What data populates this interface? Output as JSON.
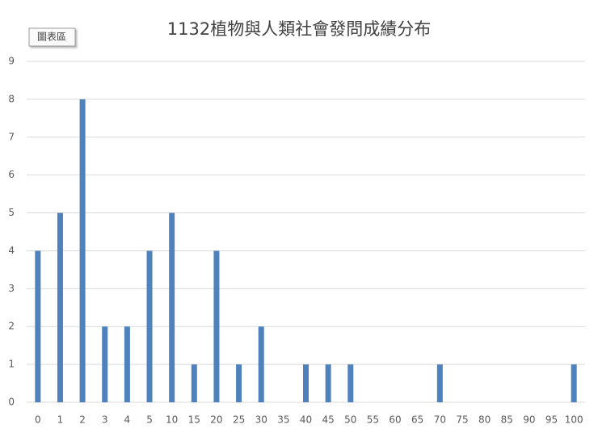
{
  "chart_data": {
    "type": "bar",
    "title": "1132植物與人類社會發問成績分布",
    "tooltip": "圖表區",
    "categories": [
      "0",
      "1",
      "2",
      "3",
      "4",
      "5",
      "10",
      "15",
      "20",
      "25",
      "30",
      "35",
      "40",
      "45",
      "50",
      "55",
      "60",
      "65",
      "70",
      "75",
      "80",
      "85",
      "90",
      "95",
      "100"
    ],
    "values": [
      4,
      5,
      8,
      2,
      2,
      4,
      5,
      1,
      4,
      1,
      2,
      0,
      1,
      1,
      1,
      0,
      0,
      0,
      1,
      0,
      0,
      0,
      0,
      0,
      1
    ],
    "color": "#4f81bd",
    "ylim": [
      0,
      9
    ],
    "yticks": [
      0,
      1,
      2,
      3,
      4,
      5,
      6,
      7,
      8,
      9
    ],
    "grid": true
  }
}
